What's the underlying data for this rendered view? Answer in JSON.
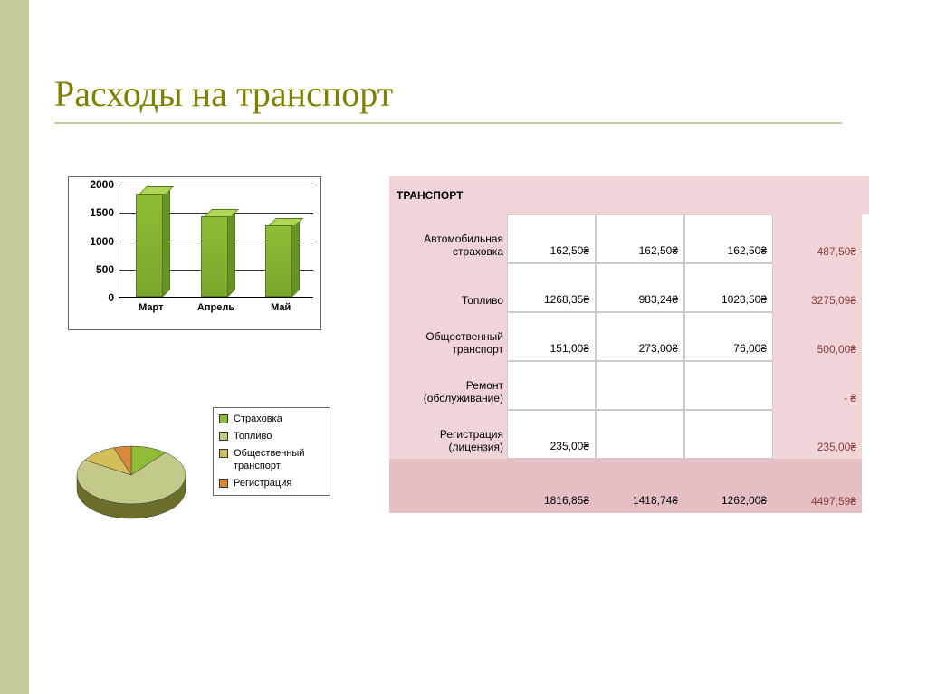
{
  "title": "Расходы на транспорт",
  "colors": {
    "accent": "#808000",
    "sidebar": "#c6c998",
    "table_header_bg": "#f0d4d8",
    "table_footer_bg": "#e6bfc5",
    "table_total_text": "#8b3a3a",
    "chart_border": "#666666"
  },
  "bar_chart": {
    "type": "bar",
    "categories": [
      "Март",
      "Апрель",
      "Май"
    ],
    "values": [
      1816.85,
      1418.74,
      1262.0
    ],
    "bar_color": "#8fbc34",
    "bar_top_color": "#b0d659",
    "bar_side_color": "#6a9126",
    "ylim": [
      0,
      2000
    ],
    "ytick_step": 500,
    "yticks": [
      "0",
      "500",
      "1000",
      "1500",
      "2000"
    ],
    "background": "#ffffff",
    "grid_color": "#333333",
    "label_fontsize": 12,
    "label_fontweight": "bold"
  },
  "pie_chart": {
    "type": "pie",
    "slices": [
      {
        "label": "Страховка",
        "value": 487.5,
        "color": "#8fbc34"
      },
      {
        "label": "Топливо",
        "value": 3275.09,
        "color": "#c4c98a"
      },
      {
        "label": "Общественный транспорт",
        "value": 500.0,
        "color": "#d4be5a"
      },
      {
        "label": "Регистрация",
        "value": 235.0,
        "color": "#d68a3a"
      }
    ],
    "side_color": "#6b6f2a",
    "legend_border": "#666666",
    "legend_fontsize": 11
  },
  "table": {
    "header": "ТРАНСПОРТ",
    "rows": [
      {
        "label": "Автомобильная страховка",
        "v": [
          "162,50₴",
          "162,50₴",
          "162,50₴"
        ],
        "total": "487,50₴"
      },
      {
        "label": "Топливо",
        "v": [
          "1268,35₴",
          "983,24₴",
          "1023,50₴"
        ],
        "total": "3275,09₴"
      },
      {
        "label": "Общественный транспорт",
        "v": [
          "151,00₴",
          "273,00₴",
          "76,00₴"
        ],
        "total": "500,00₴"
      },
      {
        "label": "Ремонт (обслуживание)",
        "v": [
          "",
          "",
          ""
        ],
        "total": "- ₴"
      },
      {
        "label": "Регистрация (лицензия)",
        "v": [
          "235,00₴",
          "",
          ""
        ],
        "total": "235,00₴"
      }
    ],
    "footer": {
      "label": "",
      "v": [
        "1816,85₴",
        "1418,74₴",
        "1262,00₴"
      ],
      "total": "4497,59₴"
    }
  }
}
